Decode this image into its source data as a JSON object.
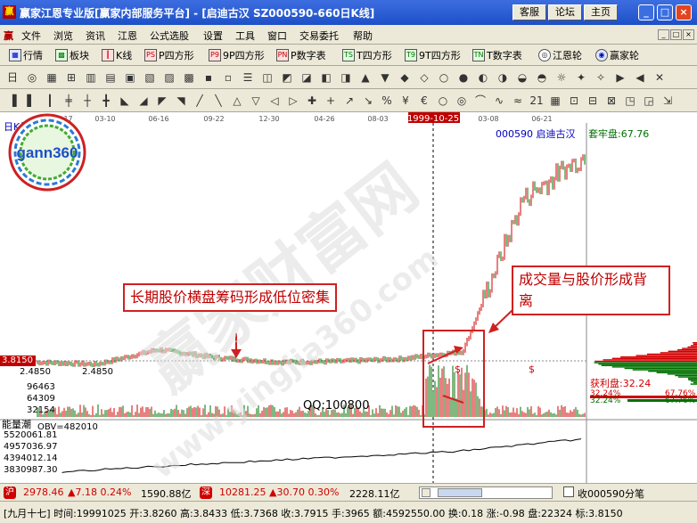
{
  "window": {
    "title": "赢家江恩专业版[赢家内部服务平台] - [启迪古汉   SZ000590-660日K线]",
    "buttons": [
      "客服",
      "论坛",
      "主页"
    ]
  },
  "menu": {
    "items": [
      "文件",
      "浏览",
      "资讯",
      "江恩",
      "公式选股",
      "设置",
      "工具",
      "窗口",
      "交易委托",
      "帮助"
    ]
  },
  "toolbar1": {
    "items": [
      {
        "icon": "grid-icon",
        "label": "行情"
      },
      {
        "icon": "blocks-icon",
        "label": "板块"
      },
      {
        "icon": "kline-icon",
        "label": "K线"
      },
      {
        "icon": "ps-icon",
        "label": "P四方形"
      },
      {
        "icon": "p9-icon",
        "label": "9P四方形"
      },
      {
        "icon": "pn-icon",
        "label": "P数字表"
      },
      {
        "icon": "ts-icon",
        "label": "T四方形"
      },
      {
        "icon": "t9-icon",
        "label": "9T四方形"
      },
      {
        "icon": "tn-icon",
        "label": "T数字表"
      },
      {
        "icon": "wheel-icon",
        "label": "江恩轮"
      },
      {
        "icon": "winner-wheel-icon",
        "label": "赢家轮"
      }
    ]
  },
  "chart": {
    "period_label": "日K线",
    "stock_label": "000590  启迪古汉",
    "cursor_date": "1999-10-25",
    "date_ticks": [
      "11-17",
      "03-10",
      "06-16",
      "09-22",
      "12-30",
      "04-26",
      "08-03",
      "1999-10-25",
      "03-08",
      "06-21"
    ],
    "price_left": "3.8150",
    "low_label_left": "2.4850",
    "low_label_inline": "2.4850",
    "trapped_label": "套牢盘:67.76",
    "profit_label": "获利盘:32.24",
    "pct_left_1": "32.24%",
    "pct_left_2": "32.24%",
    "pct_right_1": "67.76%",
    "pct_right_2": "67.76%",
    "volume_ticks": [
      "96463",
      "64309",
      "32154"
    ],
    "obv_title": "能量潮",
    "obv_value": "OBV=482010",
    "obv_ticks": [
      "5520061.81",
      "4957036.97",
      "4394012.14",
      "3830987.30"
    ],
    "qq_text": "QQ:100800",
    "dollar_marks": [
      "$",
      "$"
    ]
  },
  "chart_data": {
    "type": "line",
    "title": "",
    "xlabel": "",
    "ylabel": "",
    "x": [
      "11-17",
      "03-10",
      "06-16",
      "09-22",
      "12-30",
      "04-26",
      "08-03",
      "1999-10-25",
      "03-08",
      "06-21"
    ],
    "series": [
      {
        "values": [
          2.6,
          2.55,
          2.9,
          2.7,
          2.6,
          2.62,
          2.68,
          2.85,
          6.5,
          7.5
        ]
      }
    ]
  },
  "annotations": {
    "box1": "长期股价横盘筹码形成低位密集",
    "box2_line1": "成交量与股价形成背",
    "box2_line2": "离"
  },
  "watermark": {
    "text1": "赢家财富网",
    "text2": "www.yingjia360.com"
  },
  "logo": {
    "text": "gann360"
  },
  "status1": {
    "sh_icon": "沪",
    "sh_index": "2978.46",
    "sh_change": "▲7.18 0.24%",
    "sh_amount": "1590.88亿",
    "sz_icon": "深",
    "sz_index": "10281.25",
    "sz_change": "▲30.70 0.30%",
    "sz_amount": "2228.11亿",
    "right_text": "收000590分笔"
  },
  "status2": {
    "text": "[九月十七] 时间:19991025 开:3.8260 高:3.8433 低:3.7368 收:3.7915 手:3965 额:4592550.00 换:0.18 涨:-0.98 盘:22324 标:3.8150"
  },
  "colors": {
    "titlebar": "#1d4fc8",
    "up": "#d00000",
    "down": "#007000",
    "annotation": "#d02020",
    "text_blue": "#0000c0"
  }
}
